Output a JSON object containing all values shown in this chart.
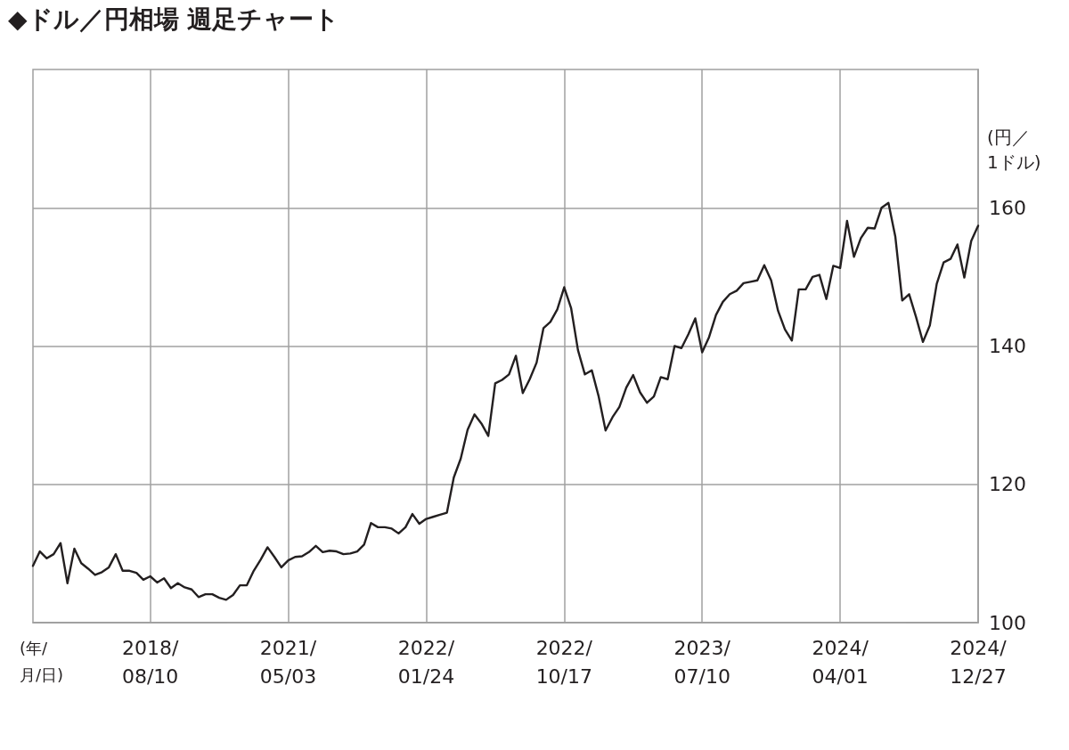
{
  "chart_data": {
    "type": "line",
    "title": "◆ドル／円相場 週足チャート",
    "xlabel": "(年/\n月/日)",
    "ylabel": "(円／\n1ドル)",
    "categories": [
      null,
      null,
      null,
      null,
      null,
      null,
      null,
      null,
      null,
      null,
      null,
      null,
      null,
      null,
      null,
      null,
      null,
      "2018/\n08/10",
      null,
      null,
      null,
      null,
      null,
      null,
      null,
      null,
      null,
      null,
      null,
      null,
      null,
      null,
      null,
      null,
      null,
      null,
      null,
      "2021/\n05/03",
      null,
      null,
      null,
      null,
      null,
      null,
      null,
      null,
      null,
      null,
      null,
      null,
      null,
      null,
      null,
      null,
      null,
      null,
      null,
      "2022/\n01/24",
      null,
      null,
      null,
      null,
      null,
      null,
      null,
      null,
      null,
      null,
      null,
      null,
      null,
      null,
      null,
      null,
      null,
      null,
      null,
      "2022/\n10/17",
      null,
      null,
      null,
      null,
      null,
      null,
      null,
      null,
      null,
      null,
      null,
      null,
      null,
      null,
      null,
      null,
      null,
      null,
      null,
      "2023/\n07/10",
      null,
      null,
      null,
      null,
      null,
      null,
      null,
      null,
      null,
      null,
      null,
      null,
      null,
      null,
      null,
      null,
      null,
      null,
      null,
      "2024/\n04/01",
      null,
      null,
      null,
      null,
      null,
      null,
      null,
      null,
      null,
      null,
      null,
      null,
      null,
      null,
      null,
      null,
      null,
      null,
      null,
      "2024/\n12/27"
    ],
    "series": [
      {
        "color": "#231f20",
        "values": [
          108.2,
          110.3,
          109.3,
          109.9,
          111.5,
          105.7,
          110.7,
          108.6,
          107.8,
          106.9,
          107.3,
          108.0,
          109.9,
          107.5,
          107.5,
          107.2,
          106.2,
          106.7,
          105.8,
          106.4,
          105.0,
          105.7,
          105.1,
          104.8,
          103.7,
          104.1,
          104.1,
          103.6,
          103.3,
          104.0,
          105.4,
          105.4,
          107.5,
          109.1,
          110.9,
          109.5,
          108.0,
          109.0,
          109.5,
          109.6,
          110.2,
          111.1,
          110.2,
          110.4,
          110.3,
          109.9,
          110.0,
          110.3,
          111.3,
          114.4,
          113.8,
          113.8,
          113.6,
          112.9,
          113.8,
          115.7,
          114.3,
          115.0,
          115.3,
          115.6,
          115.9,
          121.0,
          123.7,
          127.9,
          130.1,
          128.8,
          127.0,
          134.6,
          135.1,
          135.9,
          138.6,
          133.2,
          135.2,
          137.6,
          142.6,
          143.5,
          145.3,
          148.5,
          145.5,
          139.4,
          135.9,
          136.5,
          132.7,
          127.8,
          129.7,
          131.2,
          134.0,
          135.8,
          133.3,
          131.8,
          132.7,
          135.5,
          135.2,
          140.0,
          139.7,
          141.7,
          144.0,
          139.1,
          141.3,
          144.5,
          146.4,
          147.5,
          148.0,
          149.1,
          149.3,
          149.5,
          151.7,
          149.5,
          145.1,
          142.4,
          140.8,
          148.2,
          148.2,
          150.0,
          150.3,
          146.8,
          151.6,
          151.3,
          158.1,
          152.9,
          155.6,
          157.1,
          157.0,
          160.0,
          160.7,
          155.8,
          146.6,
          147.5,
          144.2,
          140.6,
          143.0,
          149.0,
          152.1,
          152.6,
          154.7,
          149.9,
          155.2,
          157.4
        ]
      }
    ],
    "ylim": [
      100,
      180
    ],
    "yticks": [
      100,
      120,
      140,
      160
    ],
    "grid": true,
    "marker": "none",
    "line_style": "solid"
  }
}
